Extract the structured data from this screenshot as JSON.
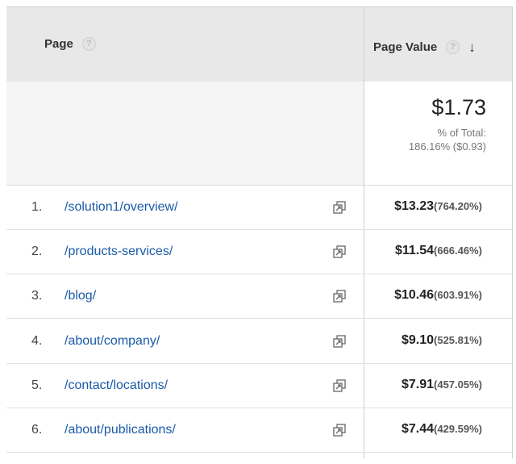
{
  "table": {
    "headers": {
      "page": "Page",
      "page_value": "Page Value",
      "help_glyph": "?",
      "sort_glyph": "↓"
    },
    "total": {
      "amount": "$1.73",
      "pct_label": "% of Total:",
      "pct_value": "186.16% ($0.93)"
    },
    "rows": [
      {
        "index": "1.",
        "path": "/solution1/overview/",
        "value": "$13.23",
        "pct": "(764.20%)"
      },
      {
        "index": "2.",
        "path": "/products-services/",
        "value": "$11.54",
        "pct": "(666.46%)"
      },
      {
        "index": "3.",
        "path": "/blog/",
        "value": "$10.46",
        "pct": "(603.91%)"
      },
      {
        "index": "4.",
        "path": "/about/company/",
        "value": "$9.10",
        "pct": "(525.81%)"
      },
      {
        "index": "5.",
        "path": "/contact/locations/",
        "value": "$7.91",
        "pct": "(457.05%)"
      },
      {
        "index": "6.",
        "path": "/about/publications/",
        "value": "$7.44",
        "pct": "(429.59%)"
      }
    ]
  },
  "icons": {
    "help": "help-circle-icon",
    "sort": "sort-descending-arrow-icon",
    "external_link": "open-in-new-window-icon"
  },
  "colors": {
    "header_bg": "#e8e8e8",
    "link": "#1a5aa8",
    "total_row_bg": "#f5f5f5"
  }
}
